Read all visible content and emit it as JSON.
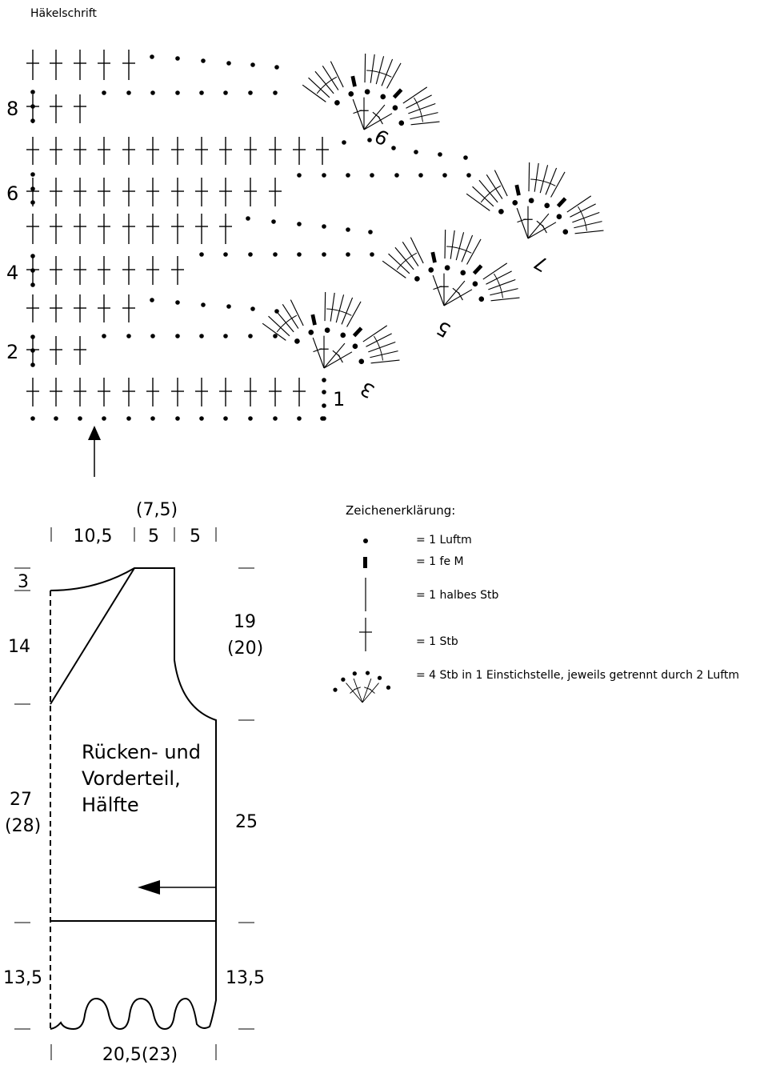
{
  "chart_title": "Häkelschrift",
  "row_numbers": [
    "8",
    "6",
    "4",
    "2"
  ],
  "fan_numbers": [
    "1",
    "3",
    "5",
    "7",
    "9"
  ],
  "legend": {
    "heading": "Zeichenerklärung:",
    "items": [
      {
        "symbol": "chain-dot-icon",
        "label": "= 1 Luftm"
      },
      {
        "symbol": "single-crochet-bar-icon",
        "label": "= 1 fe M"
      },
      {
        "symbol": "half-double-crochet-line-icon",
        "label": "= 1 halbes Stb"
      },
      {
        "symbol": "double-crochet-cross-icon",
        "label": "= 1 Stb"
      },
      {
        "symbol": "fan-icon",
        "label": "= 4 Stb in 1 Einstichstelle, jeweils getrennt durch 2 Luftm"
      }
    ]
  },
  "schematic": {
    "label_lines": [
      "Rücken- und",
      "Vorderteil,",
      "Hälfte"
    ],
    "top_dims": {
      "alt": "(7,5)",
      "a": "10,5",
      "b": "5",
      "c": "5"
    },
    "left_dims": {
      "shoulder": "3",
      "armhole": "14",
      "body": "27",
      "body_alt": "(28)",
      "hem": "13,5"
    },
    "right_dims": {
      "armhole": "19",
      "armhole_alt": "(20)",
      "body": "25",
      "hem": "13,5"
    },
    "bottom_dim": "20,5(23)"
  }
}
